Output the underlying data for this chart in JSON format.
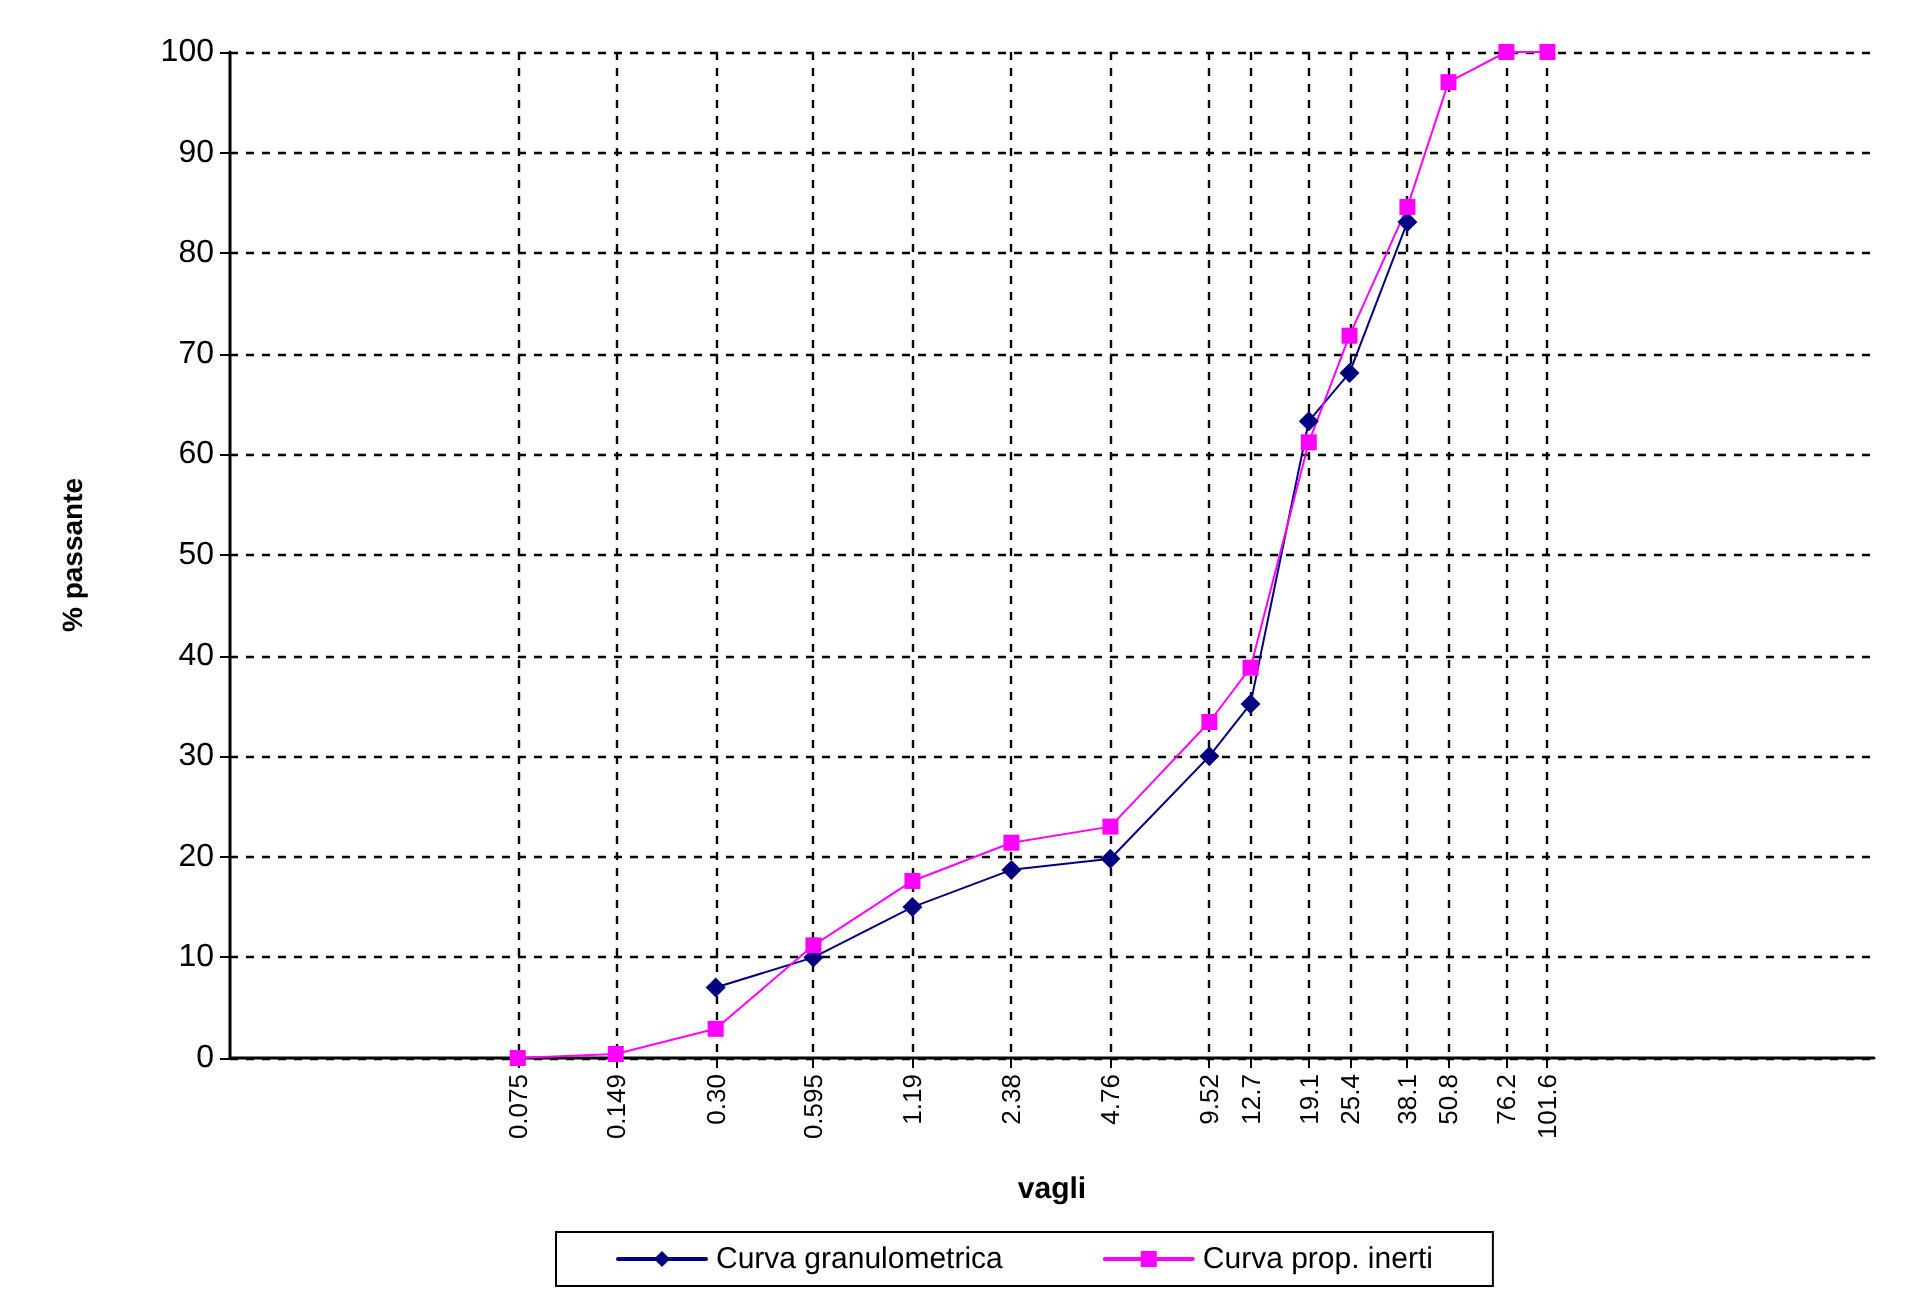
{
  "chart_data": {
    "type": "line",
    "xlabel": "vagli",
    "ylabel": "% passante",
    "log": "x",
    "x": [
      0.075,
      0.149,
      0.3,
      0.595,
      1.19,
      2.38,
      4.76,
      9.52,
      12.7,
      19.1,
      25.4,
      38.1,
      50.8,
      76.2,
      101.6
    ],
    "series": [
      {
        "name": "Curva granulometrica",
        "color": "#000080",
        "marker": "diamond",
        "values": [
          null,
          null,
          7,
          10,
          15,
          18.7,
          19.8,
          30,
          35.2,
          63.3,
          68.1,
          83.1,
          null,
          null,
          null
        ]
      },
      {
        "name": "Curva prop. inerti",
        "color": "#ff00ff",
        "marker": "square",
        "values": [
          0,
          0.4,
          2.9,
          11.2,
          17.6,
          21.4,
          23,
          33.4,
          38.8,
          61.2,
          71.8,
          84.6,
          97,
          100,
          100
        ]
      }
    ],
    "xlim": [
      0.01,
      1000
    ],
    "xticks": [
      0.075,
      0.149,
      {
        "value": 0.3,
        "label": "0.30"
      },
      0.595,
      1.19,
      2.38,
      4.76,
      9.52,
      12.7,
      19.1,
      25.4,
      38.1,
      50.8,
      76.2,
      101.6
    ],
    "ylim": [
      0,
      100
    ],
    "yticks": [
      0,
      10,
      20,
      30,
      40,
      50,
      60,
      70,
      80,
      90,
      100
    ],
    "grid": true,
    "line_style": "solid",
    "legend": "bottom"
  }
}
